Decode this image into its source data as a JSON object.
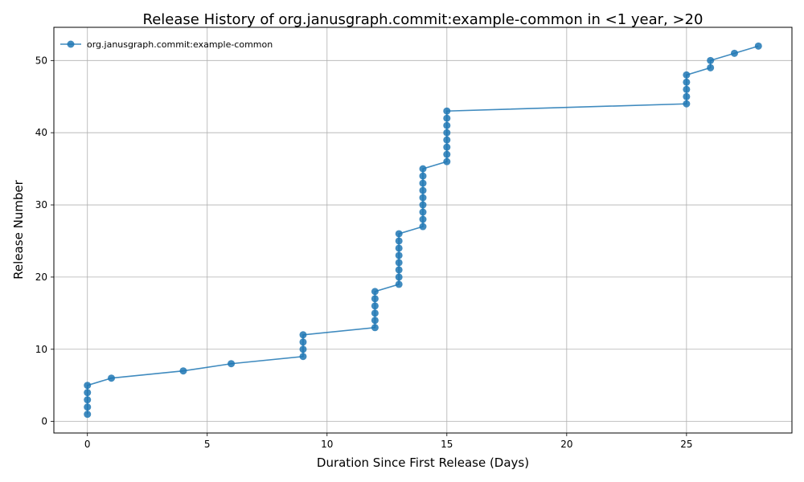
{
  "chart_data": {
    "type": "line",
    "title": "Release History of org.janusgraph.commit:example-common in <1 year, >20",
    "xlabel": "Duration Since First Release (Days)",
    "ylabel": "Release Number",
    "xlim": [
      -1.4,
      29.4
    ],
    "ylim": [
      -1.6,
      54.6
    ],
    "xticks": [
      0,
      5,
      10,
      15,
      20,
      25
    ],
    "yticks": [
      0,
      10,
      20,
      30,
      40,
      50
    ],
    "grid": true,
    "legend": "top-left",
    "colors": {
      "series": "#1f77b4"
    },
    "series": [
      {
        "name": "org.janusgraph.commit:example-common",
        "x": [
          0,
          0,
          0,
          0,
          0,
          1,
          4,
          6,
          9,
          9,
          9,
          9,
          12,
          12,
          12,
          12,
          12,
          12,
          13,
          13,
          13,
          13,
          13,
          13,
          13,
          13,
          14,
          14,
          14,
          14,
          14,
          14,
          14,
          14,
          14,
          15,
          15,
          15,
          15,
          15,
          15,
          15,
          15,
          25,
          25,
          25,
          25,
          25,
          26,
          26,
          27,
          28
        ],
        "y": [
          1,
          2,
          3,
          4,
          5,
          6,
          7,
          8,
          9,
          10,
          11,
          12,
          13,
          14,
          15,
          16,
          17,
          18,
          19,
          20,
          21,
          22,
          23,
          24,
          25,
          26,
          27,
          28,
          29,
          30,
          31,
          32,
          33,
          34,
          35,
          36,
          37,
          38,
          39,
          40,
          41,
          42,
          43,
          44,
          45,
          46,
          47,
          48,
          49,
          50,
          51,
          52
        ]
      }
    ]
  }
}
